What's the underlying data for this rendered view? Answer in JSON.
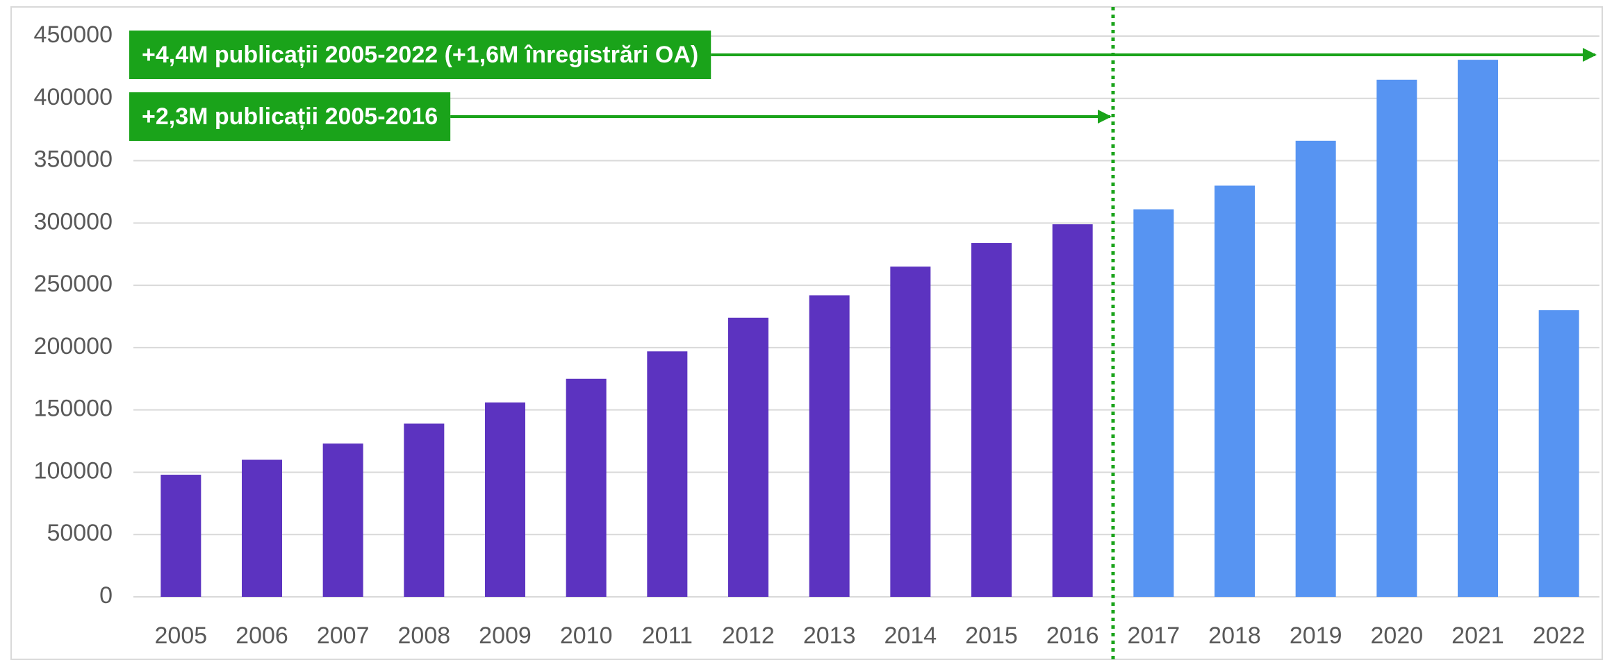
{
  "chart_data": {
    "type": "bar",
    "categories": [
      "2005",
      "2006",
      "2007",
      "2008",
      "2009",
      "2010",
      "2011",
      "2012",
      "2013",
      "2014",
      "2015",
      "2016",
      "2017",
      "2018",
      "2019",
      "2020",
      "2021",
      "2022"
    ],
    "values": [
      98000,
      110000,
      123000,
      139000,
      156000,
      175000,
      197000,
      224000,
      242000,
      265000,
      284000,
      299000,
      311000,
      330000,
      366000,
      415000,
      431000,
      230000
    ],
    "colors": [
      "#5c33c0",
      "#5c33c0",
      "#5c33c0",
      "#5c33c0",
      "#5c33c0",
      "#5c33c0",
      "#5c33c0",
      "#5c33c0",
      "#5c33c0",
      "#5c33c0",
      "#5c33c0",
      "#5c33c0",
      "#5794f2",
      "#5794f2",
      "#5794f2",
      "#5794f2",
      "#5794f2",
      "#5794f2"
    ],
    "ylim": [
      0,
      450000
    ],
    "yticks": [
      0,
      50000,
      100000,
      150000,
      200000,
      250000,
      300000,
      350000,
      400000,
      450000
    ],
    "grid": true,
    "annotations": [
      {
        "text": "+4,4M publicații 2005-2022 (+1,6M înregistrări OA)",
        "color": "#1aa31a"
      },
      {
        "text": "+2,3M publicații 2005-2016",
        "color": "#1aa31a"
      }
    ]
  }
}
